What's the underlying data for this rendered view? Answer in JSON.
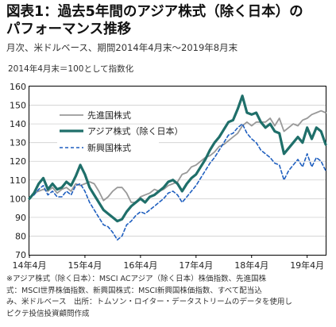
{
  "header": {
    "title_line1": "図表1：過去5年間のアジア株式（除く日本）の",
    "title_line2": "パフォーマンス推移",
    "subtitle": "月次、米ドルベース、期間2014年4月末～2019年8月末"
  },
  "note": "2014年4月末＝100として指数化",
  "footnote": {
    "line1": "※アジア株式（除く日本）：MSCI ACアジア（除く日本）株価指数、先進国株",
    "line2": "式：MSCI世界株価指数、新興国株式：MSCI新興国株価指数、すべて配当込",
    "line3": "み、米ドルベース　出所：トムソン・ロイター・データストリームのデータを使用し",
    "line4": "ピクテ投信投資顧問作成"
  },
  "colors": {
    "developed": "#999999",
    "asia": "#1f6f6a",
    "emerging": "#1f5fbf"
  },
  "chart_data": {
    "type": "line",
    "ylim": [
      70,
      160
    ],
    "yticks": [
      70,
      80,
      90,
      100,
      110,
      120,
      130,
      140,
      150,
      160
    ],
    "xticks": [
      {
        "label": "14年4月",
        "index": 0
      },
      {
        "label": "15年4月",
        "index": 12
      },
      {
        "label": "16年4月",
        "index": 24
      },
      {
        "label": "17年4月",
        "index": 36
      },
      {
        "label": "18年4月",
        "index": 48
      },
      {
        "label": "19年4月",
        "index": 60
      }
    ],
    "x_count": 65,
    "legend_position": "top-left",
    "series": [
      {
        "name": "先進国株式",
        "style": "solid-thin",
        "values": [
          100,
          103,
          104,
          105,
          104,
          106,
          103,
          105,
          106,
          104,
          108,
          107,
          108,
          109,
          108,
          104,
          99,
          101,
          104,
          106,
          106,
          103,
          98,
          98,
          101,
          102,
          103,
          105,
          104,
          105,
          107,
          108,
          109,
          113,
          114,
          117,
          118,
          120,
          122,
          123,
          125,
          128,
          129,
          131,
          133,
          135,
          139,
          141,
          139,
          141,
          141,
          141,
          143,
          139,
          143,
          136,
          138,
          140,
          139,
          142,
          143,
          145,
          146,
          147,
          146
        ]
      },
      {
        "name": "アジア株式（除く日本）",
        "style": "solid-thick",
        "values": [
          100,
          103,
          108,
          111,
          105,
          108,
          105,
          106,
          109,
          107,
          112,
          118,
          113,
          106,
          102,
          98,
          94,
          92,
          90,
          88,
          89,
          93,
          96,
          98,
          100,
          98,
          101,
          102,
          104,
          106,
          109,
          110,
          108,
          104,
          108,
          111,
          113,
          117,
          121,
          126,
          130,
          133,
          137,
          141,
          142,
          148,
          155,
          146,
          145,
          146,
          141,
          138,
          140,
          136,
          135,
          124,
          127,
          130,
          133,
          130,
          138,
          132,
          138,
          136,
          129
        ]
      },
      {
        "name": "新興国株式",
        "style": "dashed",
        "values": [
          100,
          102,
          105,
          107,
          102,
          104,
          101,
          101,
          104,
          102,
          107,
          108,
          104,
          98,
          94,
          90,
          86,
          85,
          82,
          78,
          80,
          86,
          88,
          91,
          93,
          92,
          94,
          96,
          98,
          100,
          103,
          104,
          102,
          98,
          101,
          104,
          107,
          111,
          115,
          119,
          122,
          126,
          130,
          134,
          135,
          138,
          140,
          135,
          132,
          130,
          126,
          124,
          122,
          119,
          118,
          110,
          115,
          118,
          121,
          117,
          124,
          117,
          122,
          120,
          115
        ]
      }
    ]
  }
}
